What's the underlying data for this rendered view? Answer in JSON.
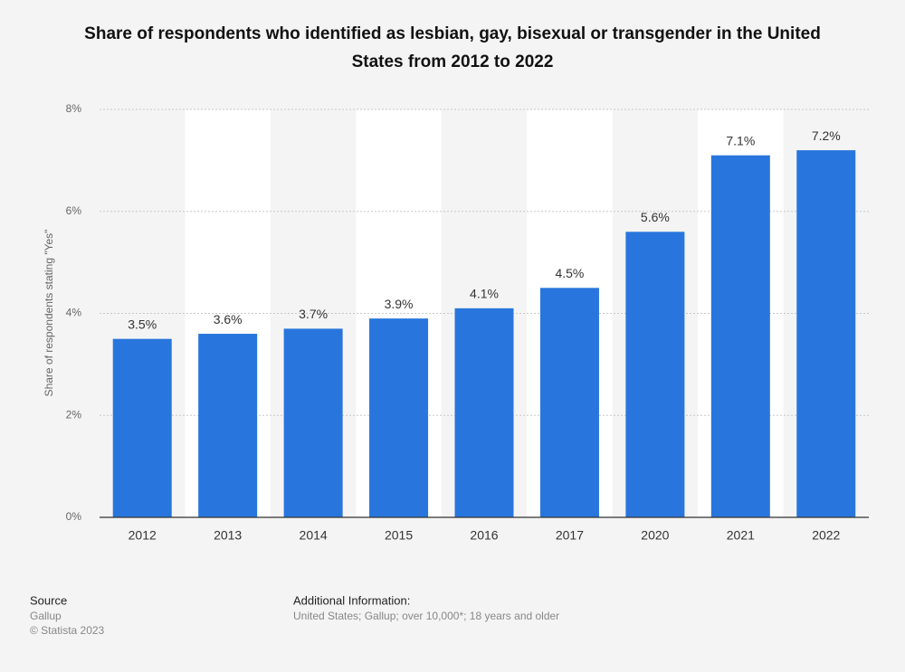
{
  "chart_data": {
    "type": "bar",
    "title": "Share of respondents who identified as lesbian, gay, bisexual or transgender in the United States from 2012 to 2022",
    "y_label": "Share of respondents stating \"Yes\"",
    "categories": [
      "2012",
      "2013",
      "2014",
      "2015",
      "2016",
      "2017",
      "2020",
      "2021",
      "2022"
    ],
    "values": [
      3.5,
      3.6,
      3.7,
      3.9,
      4.1,
      4.5,
      5.6,
      7.1,
      7.2
    ],
    "value_labels": [
      "3.5%",
      "3.6%",
      "3.7%",
      "3.9%",
      "4.1%",
      "4.5%",
      "5.6%",
      "7.1%",
      "7.2%"
    ],
    "color": "#2876dd",
    "ylim": [
      0,
      8
    ],
    "yticks": [
      {
        "value": 0,
        "label": "0%"
      },
      {
        "value": 2,
        "label": "2%"
      },
      {
        "value": 4,
        "label": "4%"
      },
      {
        "value": 6,
        "label": "6%"
      },
      {
        "value": 8,
        "label": "8%"
      }
    ],
    "grid": true
  },
  "footer": {
    "source_heading": "Source",
    "source": "Gallup",
    "copyright": "© Statista 2023",
    "info_heading": "Additional Information:",
    "info": "United States; Gallup; over 10,000*; 18 years and older"
  }
}
